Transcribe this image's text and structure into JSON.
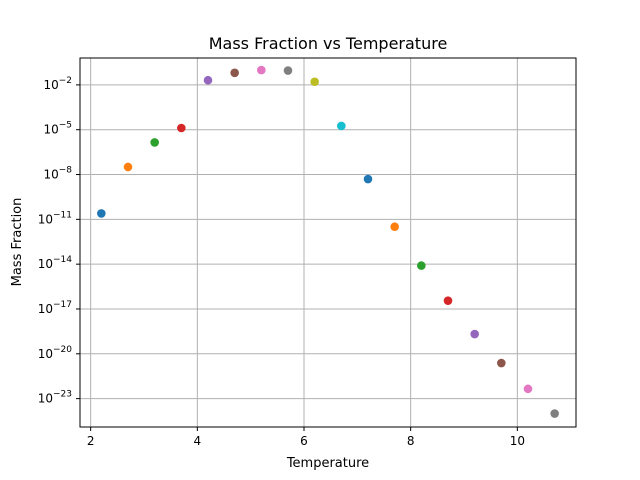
{
  "chart_data": {
    "type": "scatter",
    "title": "Mass Fraction vs Temperature",
    "xlabel": "Temperature",
    "ylabel": "Mass Fraction",
    "xlim": [
      1.8,
      11.1
    ],
    "ylim_log10": [
      -24.9,
      -0.2
    ],
    "yscale": "log",
    "grid": true,
    "x_ticks": [
      {
        "value": 2,
        "label": "2"
      },
      {
        "value": 4,
        "label": "4"
      },
      {
        "value": 6,
        "label": "6"
      },
      {
        "value": 8,
        "label": "8"
      },
      {
        "value": 10,
        "label": "10"
      }
    ],
    "y_ticks": [
      {
        "exp": -2,
        "base": "10",
        "sup": "−2"
      },
      {
        "exp": -5,
        "base": "10",
        "sup": "−5"
      },
      {
        "exp": -8,
        "base": "10",
        "sup": "−8"
      },
      {
        "exp": -11,
        "base": "10",
        "sup": "−11"
      },
      {
        "exp": -14,
        "base": "10",
        "sup": "−14"
      },
      {
        "exp": -17,
        "base": "10",
        "sup": "−17"
      },
      {
        "exp": -20,
        "base": "10",
        "sup": "−20"
      },
      {
        "exp": -23,
        "base": "10",
        "sup": "−23"
      }
    ],
    "points": [
      {
        "x": 2.2,
        "y": 2.5e-11,
        "color": "#1f77b4"
      },
      {
        "x": 2.7,
        "y": 3.2e-08,
        "color": "#ff7f0e"
      },
      {
        "x": 3.2,
        "y": 1.4e-06,
        "color": "#2ca02c"
      },
      {
        "x": 3.7,
        "y": 1.3e-05,
        "color": "#d62728"
      },
      {
        "x": 4.2,
        "y": 0.0205,
        "color": "#9467bd"
      },
      {
        "x": 4.7,
        "y": 0.0646,
        "color": "#8c564b"
      },
      {
        "x": 5.2,
        "y": 0.0977,
        "color": "#e377c2"
      },
      {
        "x": 5.7,
        "y": 0.0912,
        "color": "#7f7f7f"
      },
      {
        "x": 6.2,
        "y": 0.0162,
        "color": "#bcbd22"
      },
      {
        "x": 6.7,
        "y": 1.8e-05,
        "color": "#17becf"
      },
      {
        "x": 7.2,
        "y": 5e-09,
        "color": "#1f77b4"
      },
      {
        "x": 7.7,
        "y": 3.2e-12,
        "color": "#ff7f0e"
      },
      {
        "x": 8.2,
        "y": 8e-15,
        "color": "#2ca02c"
      },
      {
        "x": 8.7,
        "y": 3.6e-17,
        "color": "#d62728"
      },
      {
        "x": 9.2,
        "y": 2.1e-19,
        "color": "#9467bd"
      },
      {
        "x": 9.7,
        "y": 2.4e-21,
        "color": "#8c564b"
      },
      {
        "x": 10.2,
        "y": 4.5e-23,
        "color": "#e377c2"
      },
      {
        "x": 10.7,
        "y": 1e-24,
        "color": "#7f7f7f"
      }
    ]
  }
}
